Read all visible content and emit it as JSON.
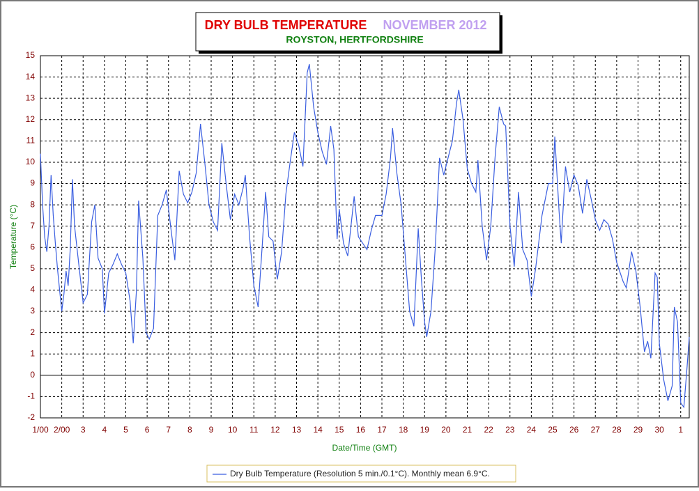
{
  "chart_data": {
    "type": "line",
    "title": "DRY BULB TEMPERATURE",
    "title_period": "NOVEMBER 2012",
    "subtitle": "ROYSTON, HERTFORDSHIRE",
    "y_label": "Temperature (°C)",
    "x_label": "Date/Time (GMT)",
    "xlim": [
      0,
      30.4
    ],
    "ylim": [
      -2,
      15
    ],
    "yticks": [
      -2,
      -1,
      0,
      1,
      2,
      3,
      4,
      5,
      6,
      7,
      8,
      9,
      10,
      11,
      12,
      13,
      14,
      15
    ],
    "xticks": [
      {
        "value": 0,
        "label": "1/00"
      },
      {
        "value": 1,
        "label": "2/00"
      },
      {
        "value": 2,
        "label": "3"
      },
      {
        "value": 3,
        "label": "4"
      },
      {
        "value": 4,
        "label": "5"
      },
      {
        "value": 5,
        "label": "6"
      },
      {
        "value": 6,
        "label": "7"
      },
      {
        "value": 7,
        "label": "8"
      },
      {
        "value": 8,
        "label": "9"
      },
      {
        "value": 9,
        "label": "10"
      },
      {
        "value": 10,
        "label": "11"
      },
      {
        "value": 11,
        "label": "12"
      },
      {
        "value": 12,
        "label": "13"
      },
      {
        "value": 13,
        "label": "14"
      },
      {
        "value": 14,
        "label": "15"
      },
      {
        "value": 15,
        "label": "16"
      },
      {
        "value": 16,
        "label": "17"
      },
      {
        "value": 17,
        "label": "18"
      },
      {
        "value": 18,
        "label": "19"
      },
      {
        "value": 19,
        "label": "20"
      },
      {
        "value": 20,
        "label": "21"
      },
      {
        "value": 21,
        "label": "22"
      },
      {
        "value": 22,
        "label": "23"
      },
      {
        "value": 23,
        "label": "24"
      },
      {
        "value": 24,
        "label": "25"
      },
      {
        "value": 25,
        "label": "26"
      },
      {
        "value": 26,
        "label": "27"
      },
      {
        "value": 27,
        "label": "28"
      },
      {
        "value": 28,
        "label": "29"
      },
      {
        "value": 29,
        "label": "30"
      },
      {
        "value": 30,
        "label": "1"
      }
    ],
    "grid": true,
    "x": [
      0,
      0.1,
      0.2,
      0.3,
      0.4,
      0.5,
      0.6,
      0.7,
      0.8,
      1.0,
      1.1,
      1.2,
      1.3,
      1.4,
      1.5,
      1.6,
      1.8,
      2.0,
      2.2,
      2.4,
      2.55,
      2.7,
      2.9,
      3.0,
      3.2,
      3.4,
      3.6,
      3.8,
      4.0,
      4.2,
      4.35,
      4.5,
      4.6,
      4.8,
      4.95,
      5.1,
      5.3,
      5.5,
      5.7,
      5.9,
      6.1,
      6.3,
      6.5,
      6.7,
      6.9,
      7.1,
      7.3,
      7.5,
      7.7,
      7.9,
      8.1,
      8.3,
      8.5,
      8.7,
      8.9,
      9.1,
      9.3,
      9.5,
      9.6,
      9.8,
      10.0,
      10.2,
      10.4,
      10.55,
      10.7,
      10.9,
      11.1,
      11.3,
      11.5,
      11.7,
      11.9,
      12.1,
      12.3,
      12.5,
      12.6,
      12.8,
      13.0,
      13.2,
      13.4,
      13.6,
      13.75,
      13.9,
      14.0,
      14.2,
      14.4,
      14.7,
      14.9,
      15.1,
      15.3,
      15.5,
      15.7,
      16.0,
      16.2,
      16.4,
      16.5,
      16.7,
      16.9,
      17.1,
      17.3,
      17.5,
      17.7,
      17.85,
      18.0,
      18.1,
      18.3,
      18.5,
      18.7,
      18.9,
      19.1,
      19.3,
      19.5,
      19.6,
      19.8,
      20.0,
      20.2,
      20.4,
      20.5,
      20.7,
      20.9,
      21.1,
      21.3,
      21.5,
      21.7,
      21.8,
      22.0,
      22.2,
      22.4,
      22.6,
      22.8,
      23.0,
      23.2,
      23.5,
      23.8,
      24.0,
      24.1,
      24.3,
      24.4,
      24.6,
      24.8,
      25.0,
      25.2,
      25.4,
      25.6,
      25.8,
      26.0,
      26.2,
      26.4,
      26.6,
      26.8,
      27.0,
      27.3,
      27.45,
      27.7,
      27.9,
      28.1,
      28.3,
      28.45,
      28.6,
      28.8,
      28.9,
      29.0,
      29.2,
      29.4,
      29.6,
      29.7,
      29.85,
      30.0,
      30.15,
      30.3,
      30.4
    ],
    "series": [
      {
        "name": "Dry Bulb Temperature (Resolution 5 min./0.1°C). Monthly mean 6.9°C.",
        "color": "#3a5ee0",
        "values": [
          10.4,
          8,
          6.5,
          5.8,
          7,
          9.4,
          7.5,
          6.2,
          5,
          3,
          3.8,
          4.9,
          4.2,
          6,
          9.2,
          7,
          5.2,
          3.4,
          3.8,
          7.2,
          8,
          5.5,
          5,
          2.9,
          4.8,
          5.2,
          5.7,
          5.2,
          4.8,
          3.5,
          1.5,
          4,
          8.2,
          5.5,
          2,
          1.7,
          2.2,
          7.5,
          8,
          8.7,
          7,
          5.4,
          9.6,
          8.5,
          8.1,
          8.6,
          9.5,
          11.8,
          10,
          8,
          7.2,
          6.8,
          10.9,
          9,
          7.3,
          8.5,
          8,
          8.8,
          9.4,
          6.5,
          4.2,
          3.2,
          6.2,
          8.6,
          6.5,
          6.3,
          4.5,
          5.8,
          8.5,
          10,
          11.4,
          10.8,
          9.8,
          14.2,
          14.6,
          12.6,
          11.4,
          10.5,
          9.9,
          11.7,
          10.6,
          6.4,
          7.8,
          6.2,
          5.6,
          8.4,
          6.5,
          6.2,
          5.9,
          6.8,
          7.5,
          7.5,
          8.5,
          10.2,
          11.6,
          9.5,
          8,
          5.5,
          3,
          2.3,
          6.9,
          4.5,
          2.5,
          1.8,
          3,
          6,
          10.2,
          9.4,
          10.2,
          11,
          12.8,
          13.4,
          12,
          9.7,
          9,
          8.6,
          10.1,
          7,
          5.4,
          7,
          10.2,
          12.6,
          11.8,
          11.7,
          7,
          5.1,
          8.6,
          5.9,
          5.4,
          3.7,
          5,
          7.5,
          9,
          9,
          11.2,
          7.7,
          6.2,
          9.8,
          8.6,
          9.4,
          8.9,
          7.6,
          9.2,
          8.3,
          7.3,
          6.8,
          7.3,
          7.1,
          6.4,
          5.3,
          4.4,
          4.1,
          5.8,
          4.9,
          3.2,
          1.1,
          1.6,
          0.8,
          4.8,
          4.6,
          1.5,
          -0.2,
          -1.2,
          -0.5,
          3.2,
          2.5,
          -1.3,
          -1.5,
          0.4,
          1.8
        ]
      }
    ]
  }
}
